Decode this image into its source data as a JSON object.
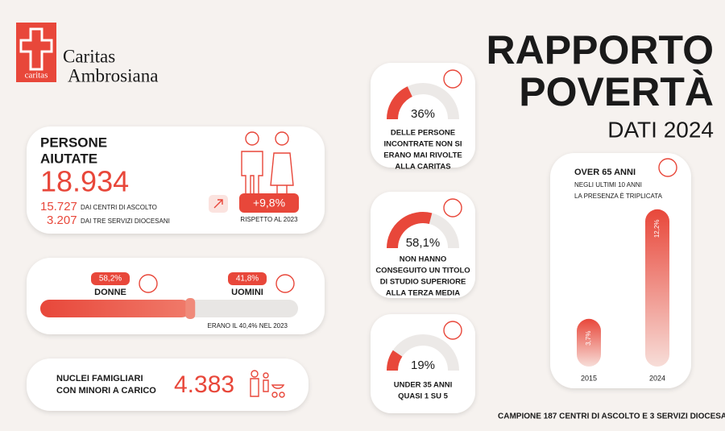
{
  "logo": {
    "cross_label": "caritas",
    "name_line1": "Caritas",
    "name_line2": "Ambrosiana"
  },
  "header": {
    "title_line1": "RAPPORTO",
    "title_line2": "POVERTÀ",
    "subtitle": "DATI 2024"
  },
  "persone": {
    "title_line1": "PERSONE",
    "title_line2": "AIUTATE",
    "total": "18.934",
    "rows": [
      {
        "number": "15.727",
        "text": "DAI CENTRI DI ASCOLTO"
      },
      {
        "number": "3.207",
        "text": "DAI TRE SERVIZI DIOCESANI"
      }
    ],
    "change": "+9,8%",
    "change_note": "RISPETTO AL 2023"
  },
  "gender": {
    "women": {
      "value": 58.2,
      "label": "58,2%",
      "name": "DONNE"
    },
    "men": {
      "value": 41.8,
      "label": "41,8%",
      "name": "UOMINI"
    },
    "note": "ERANO IL 40,4% NEL 2023"
  },
  "families": {
    "text_line1": "NUCLEI FAMIGLIARI",
    "text_line2": "CON MINORI A CARICO",
    "number": "4.383"
  },
  "gauges": [
    {
      "value": 36,
      "label": "36%",
      "lines": [
        "DELLE PERSONE",
        "INCONTRATE NON SI",
        "ERANO MAI RIVOLTE",
        "ALLA CARITAS"
      ]
    },
    {
      "value": 58.1,
      "label": "58,1%",
      "lines": [
        "NON HANNO",
        "CONSEGUITO UN TITOLO",
        "DI STUDIO SUPERIORE",
        "ALLA TERZA MEDIA"
      ]
    },
    {
      "value": 19,
      "label": "19%",
      "lines": [
        "UNDER 35 ANNI",
        "QUASI 1 SU 5"
      ]
    }
  ],
  "over65": {
    "title": "OVER 65 ANNI",
    "line1": "NEGLI ULTIMI 10 ANNI",
    "line2": "LA PRESENZA È TRIPLICATA",
    "chart": {
      "type": "bar",
      "categories": [
        "2015",
        "2024"
      ],
      "values": [
        3.7,
        12.2
      ],
      "value_labels": [
        "3,7%",
        "12,2%"
      ],
      "color": "#e8473a"
    }
  },
  "footer": "CAMPIONE 187 CENTRI DI ASCOLTO E 3 SERVIZI DIOCESA"
}
